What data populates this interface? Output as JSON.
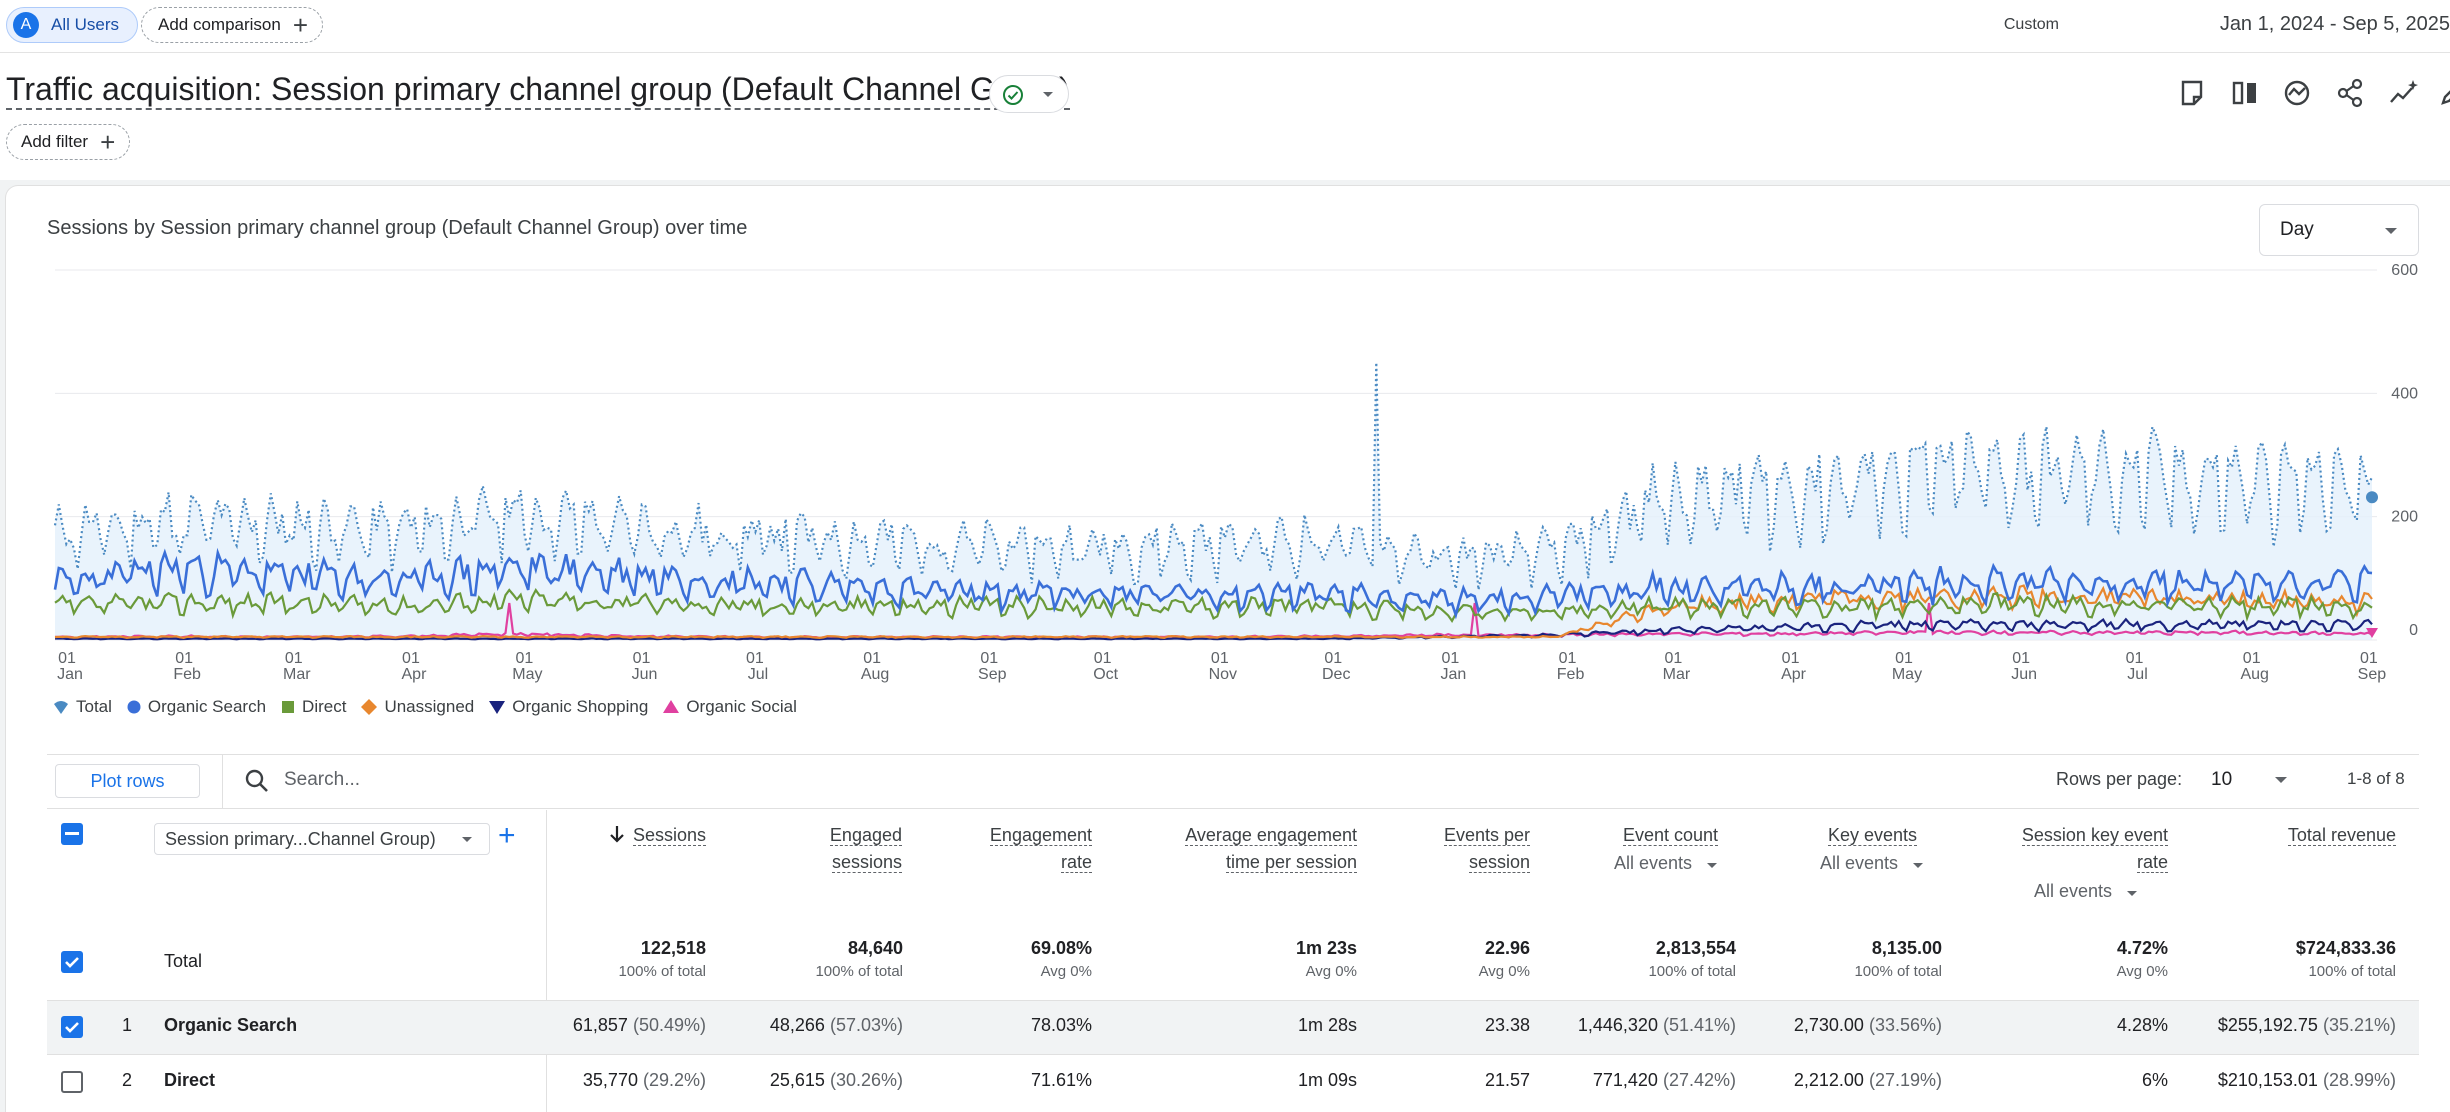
{
  "topbar": {
    "segment_avatar": "A",
    "segment_label": "All Users",
    "add_comparison_label": "Add comparison",
    "range_label": "Custom",
    "range_value": "Jan 1, 2024 - Sep 5, 2025"
  },
  "header": {
    "title": "Traffic acquisition: Session primary channel group (Default Channel Group)",
    "add_filter_label": "Add filter"
  },
  "chart": {
    "title": "Sessions by Session primary channel group (Default Channel Group) over time",
    "granularity": "Day",
    "y_ticks": [
      "600",
      "400",
      "200",
      "0"
    ],
    "x_ticks": [
      {
        "day": "01",
        "month": "Jan"
      },
      {
        "day": "01",
        "month": "Feb"
      },
      {
        "day": "01",
        "month": "Mar"
      },
      {
        "day": "01",
        "month": "Apr"
      },
      {
        "day": "01",
        "month": "May"
      },
      {
        "day": "01",
        "month": "Jun"
      },
      {
        "day": "01",
        "month": "Jul"
      },
      {
        "day": "01",
        "month": "Aug"
      },
      {
        "day": "01",
        "month": "Sep"
      },
      {
        "day": "01",
        "month": "Oct"
      },
      {
        "day": "01",
        "month": "Nov"
      },
      {
        "day": "01",
        "month": "Dec"
      },
      {
        "day": "01",
        "month": "Jan"
      },
      {
        "day": "01",
        "month": "Feb"
      },
      {
        "day": "01",
        "month": "Mar"
      },
      {
        "day": "01",
        "month": "Apr"
      },
      {
        "day": "01",
        "month": "May"
      },
      {
        "day": "01",
        "month": "Jun"
      },
      {
        "day": "01",
        "month": "Jul"
      },
      {
        "day": "01",
        "month": "Aug"
      },
      {
        "day": "01",
        "month": "Sep"
      }
    ],
    "legend": [
      {
        "label": "Total",
        "color": "#4a8ac2"
      },
      {
        "label": "Organic Search",
        "color": "#3a6fd8"
      },
      {
        "label": "Direct",
        "color": "#6a9a3a"
      },
      {
        "label": "Unassigned",
        "color": "#e8872e"
      },
      {
        "label": "Organic Shopping",
        "color": "#1a237e"
      },
      {
        "label": "Organic Social",
        "color": "#e040a0"
      }
    ]
  },
  "chart_data": {
    "type": "line",
    "title": "Sessions by Session primary channel group (Default Channel Group) over time",
    "xlabel": "",
    "ylabel": "",
    "ylim": [
      0,
      600
    ],
    "x_range": [
      "2024-01-01",
      "2025-09-05"
    ],
    "categories": [
      "Jan 2024",
      "Feb 2024",
      "Mar 2024",
      "Apr 2024",
      "May 2024",
      "Jun 2024",
      "Jul 2024",
      "Aug 2024",
      "Sep 2024",
      "Oct 2024",
      "Nov 2024",
      "Dec 2024",
      "Jan 2025",
      "Feb 2025",
      "Mar 2025",
      "Apr 2025",
      "May 2025",
      "Jun 2025",
      "Jul 2025",
      "Aug 2025",
      "Sep 2025"
    ],
    "series": [
      {
        "name": "Total",
        "values": [
          170,
          190,
          185,
          175,
          205,
          180,
          165,
          160,
          150,
          150,
          155,
          160,
          130,
          140,
          230,
          240,
          265,
          270,
          265,
          255,
          250
        ]
      },
      {
        "name": "Organic Search",
        "values": [
          90,
          115,
          105,
          95,
          115,
          105,
          95,
          85,
          75,
          75,
          75,
          75,
          65,
          70,
          85,
          85,
          90,
          95,
          90,
          90,
          95
        ]
      },
      {
        "name": "Direct",
        "values": [
          55,
          60,
          60,
          55,
          65,
          60,
          55,
          55,
          55,
          55,
          55,
          55,
          45,
          45,
          55,
          55,
          55,
          60,
          55,
          55,
          55
        ]
      },
      {
        "name": "Unassigned",
        "values": [
          5,
          5,
          5,
          5,
          5,
          5,
          5,
          5,
          5,
          5,
          5,
          5,
          5,
          5,
          55,
          65,
          70,
          70,
          70,
          65,
          60
        ]
      },
      {
        "name": "Organic Shopping",
        "values": [
          2,
          2,
          2,
          2,
          2,
          2,
          2,
          2,
          2,
          2,
          2,
          2,
          5,
          8,
          15,
          20,
          25,
          25,
          25,
          25,
          25
        ]
      },
      {
        "name": "Organic Social",
        "values": [
          5,
          6,
          5,
          6,
          10,
          6,
          5,
          5,
          5,
          5,
          5,
          6,
          8,
          8,
          10,
          10,
          12,
          12,
          12,
          12,
          10
        ]
      }
    ]
  },
  "table": {
    "plot_rows_label": "Plot rows",
    "search_placeholder": "Search...",
    "rows_per_page_label": "Rows per page:",
    "rows_per_page_value": "10",
    "pagination": "1-8 of 8",
    "dimension_selector": "Session primary...Channel Group)",
    "columns": [
      {
        "l1": "Sessions",
        "l2": "",
        "sub": ""
      },
      {
        "l1": "Engaged",
        "l2": "sessions",
        "sub": ""
      },
      {
        "l1": "Engagement",
        "l2": "rate",
        "sub": ""
      },
      {
        "l1": "Average engagement",
        "l2": "time per session",
        "sub": ""
      },
      {
        "l1": "Events per",
        "l2": "session",
        "sub": ""
      },
      {
        "l1": "Event count",
        "l2": "",
        "sub": "All events"
      },
      {
        "l1": "Key events",
        "l2": "",
        "sub": "All events"
      },
      {
        "l1": "Session key event",
        "l2": "rate",
        "sub": "All events"
      },
      {
        "l1": "Total revenue",
        "l2": "",
        "sub": ""
      }
    ],
    "total": {
      "label": "Total",
      "values": [
        "122,518",
        "84,640",
        "69.08%",
        "1m 23s",
        "22.96",
        "2,813,554",
        "8,135.00",
        "4.72%",
        "$724,833.36"
      ],
      "subs": [
        "100% of total",
        "100% of total",
        "Avg 0%",
        "Avg 0%",
        "Avg 0%",
        "100% of total",
        "100% of total",
        "Avg 0%",
        "100% of total"
      ]
    },
    "rows": [
      {
        "num": "1",
        "label": "Organic Search",
        "values": [
          "61,857",
          "48,266",
          "78.03%",
          "1m 28s",
          "23.38",
          "1,446,320",
          "2,730.00",
          "4.28%",
          "$255,192.75"
        ],
        "pcts": [
          "(50.49%)",
          "(57.03%)",
          "",
          "",
          "",
          "(51.41%)",
          "(33.56%)",
          "",
          "(35.21%)"
        ]
      },
      {
        "num": "2",
        "label": "Direct",
        "values": [
          "35,770",
          "25,615",
          "71.61%",
          "1m 09s",
          "21.57",
          "771,420",
          "2,212.00",
          "6%",
          "$210,153.01"
        ],
        "pcts": [
          "(29.2%)",
          "(30.26%)",
          "",
          "",
          "",
          "(27.42%)",
          "(27.19%)",
          "",
          "(28.99%)"
        ]
      }
    ]
  }
}
